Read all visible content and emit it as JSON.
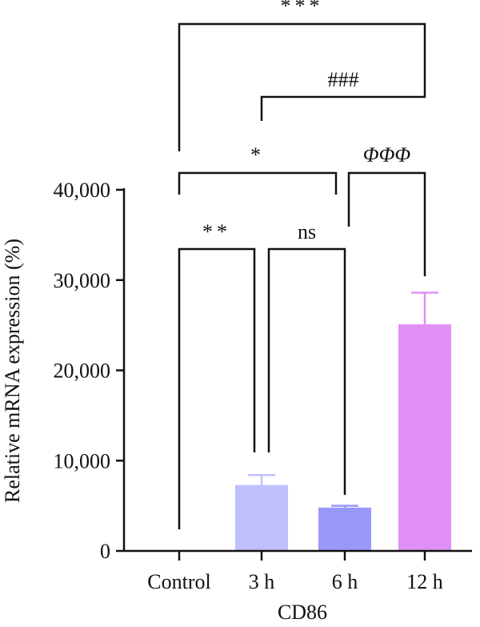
{
  "chart_data": {
    "type": "bar",
    "title": "",
    "xlabel": "CD86",
    "ylabel": "Relative mRNA expression (%)",
    "ylim": [
      0,
      40000
    ],
    "yticks": [
      0,
      10000,
      20000,
      30000,
      40000
    ],
    "ytick_labels": [
      "0",
      "10,000",
      "20,000",
      "30,000",
      "40,000"
    ],
    "grid": false,
    "categories": [
      "Control",
      "3 h",
      "6 h",
      "12 h"
    ],
    "values": [
      0,
      7300,
      4800,
      25100
    ],
    "errors": [
      0,
      1100,
      200,
      3500
    ],
    "colors": [
      "#c0c0ff",
      "#c0c0ff",
      "#9898f8",
      "#e090f5"
    ],
    "significance": [
      {
        "from": "Control",
        "to": "12 h",
        "label": "***"
      },
      {
        "from": "3 h",
        "to": "12 h",
        "label": "###"
      },
      {
        "from": "Control",
        "to": "6 h",
        "label": "*"
      },
      {
        "from": "6 h",
        "to": "12 h",
        "label": "ΦΦΦ"
      },
      {
        "from": "Control",
        "to": "3 h",
        "label": "**"
      },
      {
        "from": "3 h",
        "to": "6 h",
        "label": "ns"
      }
    ]
  }
}
